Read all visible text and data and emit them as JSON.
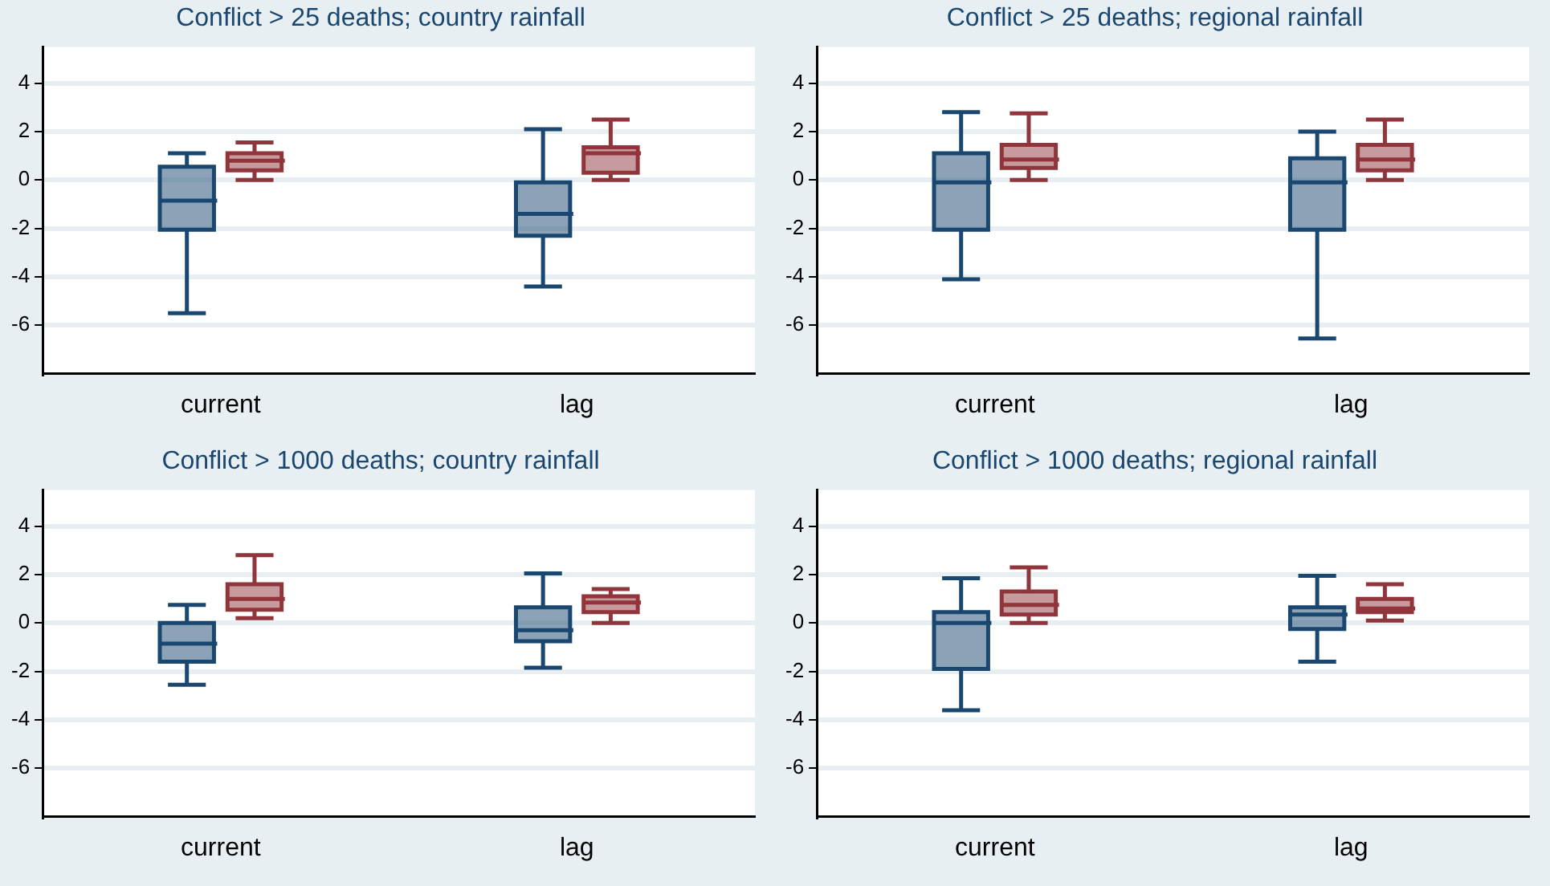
{
  "chart_data": [
    {
      "type": "box",
      "title": "Conflict > 25 deaths; country rainfall",
      "categories": [
        "current",
        "lag"
      ],
      "ylim": [
        -8,
        5.5
      ],
      "yticks": [
        -6,
        -4,
        -2,
        0,
        2,
        4
      ],
      "grid": "y",
      "legend": false,
      "series": [
        {
          "color": "#1a476f",
          "boxes": [
            {
              "low": -5.5,
              "q1": -2.05,
              "median": -0.85,
              "q3": 0.55,
              "high": 1.1
            },
            {
              "low": -4.4,
              "q1": -2.3,
              "median": -1.4,
              "q3": -0.1,
              "high": 2.1
            }
          ]
        },
        {
          "color": "#90353b",
          "boxes": [
            {
              "low": 0,
              "q1": 0.4,
              "median": 0.8,
              "q3": 1.1,
              "high": 1.55
            },
            {
              "low": 0,
              "q1": 0.3,
              "median": 1.1,
              "q3": 1.35,
              "high": 2.5
            }
          ]
        }
      ]
    },
    {
      "type": "box",
      "title": "Conflict > 25 deaths; regional rainfall",
      "categories": [
        "current",
        "lag"
      ],
      "ylim": [
        -8,
        5.5
      ],
      "yticks": [
        -6,
        -4,
        -2,
        0,
        2,
        4
      ],
      "grid": "y",
      "legend": false,
      "series": [
        {
          "color": "#1a476f",
          "boxes": [
            {
              "low": -4.1,
              "q1": -2.05,
              "median": -0.1,
              "q3": 1.1,
              "high": 2.8
            },
            {
              "low": -6.55,
              "q1": -2.05,
              "median": -0.1,
              "q3": 0.9,
              "high": 2.0
            }
          ]
        },
        {
          "color": "#90353b",
          "boxes": [
            {
              "low": 0,
              "q1": 0.5,
              "median": 0.85,
              "q3": 1.45,
              "high": 2.75
            },
            {
              "low": 0,
              "q1": 0.4,
              "median": 0.85,
              "q3": 1.45,
              "high": 2.5
            }
          ]
        }
      ]
    },
    {
      "type": "box",
      "title": "Conflict > 1000 deaths; country rainfall",
      "categories": [
        "current",
        "lag"
      ],
      "ylim": [
        -8,
        5.5
      ],
      "yticks": [
        -6,
        -4,
        -2,
        0,
        2,
        4
      ],
      "grid": "y",
      "legend": false,
      "series": [
        {
          "color": "#1a476f",
          "boxes": [
            {
              "low": -2.55,
              "q1": -1.6,
              "median": -0.85,
              "q3": 0,
              "high": 0.75
            },
            {
              "low": -1.85,
              "q1": -0.75,
              "median": -0.3,
              "q3": 0.65,
              "high": 2.05
            }
          ]
        },
        {
          "color": "#90353b",
          "boxes": [
            {
              "low": 0.2,
              "q1": 0.55,
              "median": 1.0,
              "q3": 1.6,
              "high": 2.8
            },
            {
              "low": 0,
              "q1": 0.45,
              "median": 0.85,
              "q3": 1.1,
              "high": 1.4
            }
          ]
        }
      ]
    },
    {
      "type": "box",
      "title": "Conflict > 1000 deaths; regional rainfall",
      "categories": [
        "current",
        "lag"
      ],
      "ylim": [
        -8,
        5.5
      ],
      "yticks": [
        -6,
        -4,
        -2,
        0,
        2,
        4
      ],
      "grid": "y",
      "legend": false,
      "series": [
        {
          "color": "#1a476f",
          "boxes": [
            {
              "low": -3.6,
              "q1": -1.9,
              "median": 0,
              "q3": 0.45,
              "high": 1.85
            },
            {
              "low": -1.6,
              "q1": -0.25,
              "median": 0.35,
              "q3": 0.65,
              "high": 1.95
            }
          ]
        },
        {
          "color": "#90353b",
          "boxes": [
            {
              "low": 0,
              "q1": 0.35,
              "median": 0.75,
              "q3": 1.3,
              "high": 2.3
            },
            {
              "low": 0.1,
              "q1": 0.45,
              "median": 0.6,
              "q3": 1.0,
              "high": 1.6
            }
          ]
        }
      ]
    }
  ]
}
